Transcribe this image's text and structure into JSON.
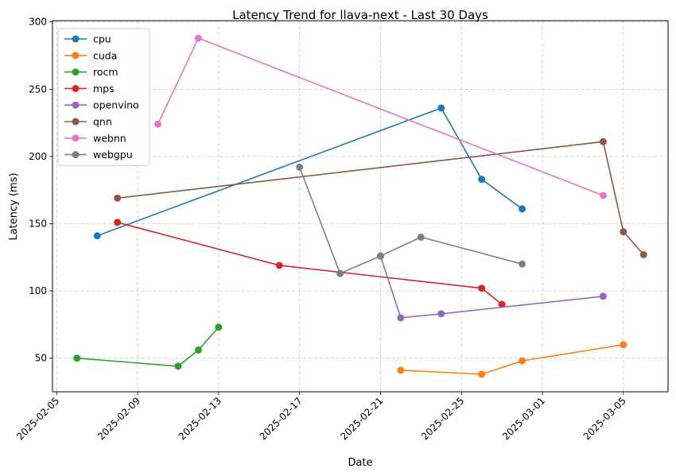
{
  "chart_data": {
    "type": "line",
    "title": "Latency Trend for llava-next - Last 30 Days",
    "xlabel": "Date",
    "ylabel": "Latency (ms)",
    "x_axis": {
      "type": "date",
      "range": [
        "2025-02-04T19:00",
        "2025-03-07T05:00"
      ],
      "ticks": [
        "2025-02-05",
        "2025-02-09",
        "2025-02-13",
        "2025-02-17",
        "2025-02-21",
        "2025-02-25",
        "2025-03-01",
        "2025-03-05"
      ]
    },
    "y_axis": {
      "range": [
        25,
        301
      ],
      "ticks": [
        50,
        100,
        150,
        200,
        250,
        300
      ]
    },
    "grid": true,
    "grid_style": "dashed",
    "legend_position": "top-left",
    "series": [
      {
        "name": "cpu",
        "color": "#1f77b4",
        "points": [
          {
            "x": "2025-02-07",
            "y": 141
          },
          {
            "x": "2025-02-24",
            "y": 236
          },
          {
            "x": "2025-02-26",
            "y": 183
          },
          {
            "x": "2025-02-28",
            "y": 161
          }
        ]
      },
      {
        "name": "cuda",
        "color": "#ff7f0e",
        "points": [
          {
            "x": "2025-02-22",
            "y": 41
          },
          {
            "x": "2025-02-26",
            "y": 38
          },
          {
            "x": "2025-02-28",
            "y": 48
          },
          {
            "x": "2025-03-05",
            "y": 60
          }
        ]
      },
      {
        "name": "rocm",
        "color": "#2ca02c",
        "points": [
          {
            "x": "2025-02-06",
            "y": 50
          },
          {
            "x": "2025-02-11",
            "y": 44
          },
          {
            "x": "2025-02-12",
            "y": 56
          },
          {
            "x": "2025-02-13",
            "y": 73
          }
        ]
      },
      {
        "name": "mps",
        "color": "#d62728",
        "points": [
          {
            "x": "2025-02-08",
            "y": 151
          },
          {
            "x": "2025-02-16",
            "y": 119
          },
          {
            "x": "2025-02-26",
            "y": 102
          },
          {
            "x": "2025-02-27",
            "y": 90
          }
        ]
      },
      {
        "name": "openvino",
        "color": "#9467bd",
        "points": [
          {
            "x": "2025-02-21",
            "y": 126
          },
          {
            "x": "2025-02-22",
            "y": 80
          },
          {
            "x": "2025-02-24",
            "y": 83
          },
          {
            "x": "2025-03-04",
            "y": 96
          }
        ]
      },
      {
        "name": "qnn",
        "color": "#8c564b",
        "points": [
          {
            "x": "2025-02-08",
            "y": 169
          },
          {
            "x": "2025-03-04",
            "y": 211
          },
          {
            "x": "2025-03-05",
            "y": 144
          },
          {
            "x": "2025-03-06",
            "y": 127
          }
        ]
      },
      {
        "name": "webnn",
        "color": "#e377c2",
        "points": [
          {
            "x": "2025-02-10",
            "y": 224
          },
          {
            "x": "2025-02-12",
            "y": 288
          },
          {
            "x": "2025-03-04",
            "y": 171
          }
        ]
      },
      {
        "name": "webgpu",
        "color": "#7f7f7f",
        "points": [
          {
            "x": "2025-02-17",
            "y": 192
          },
          {
            "x": "2025-02-19",
            "y": 113
          },
          {
            "x": "2025-02-21",
            "y": 126
          },
          {
            "x": "2025-02-23",
            "y": 140
          },
          {
            "x": "2025-02-28",
            "y": 120
          }
        ]
      }
    ]
  }
}
